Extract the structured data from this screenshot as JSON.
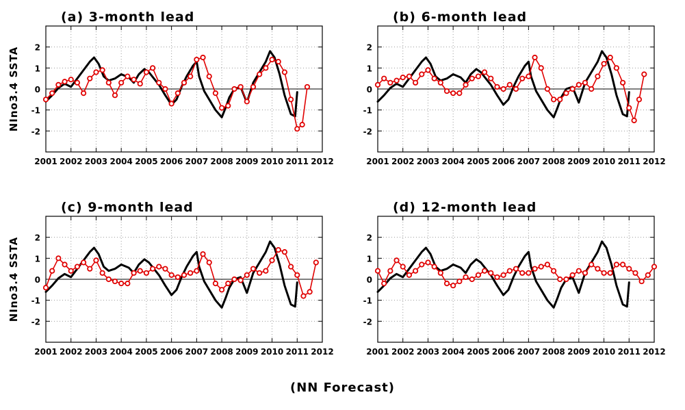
{
  "footer": "(NN Forecast)",
  "chart_data": [
    {
      "type": "line",
      "title": "(a) 3-month lead",
      "ylabel": "NIno3.4 SSTA",
      "xlim": [
        2001,
        2012
      ],
      "ylim": [
        -3,
        3
      ],
      "xticks": [
        "2001",
        "2002",
        "2003",
        "2004",
        "2005",
        "2006",
        "2007",
        "2008",
        "2009",
        "2010",
        "2011",
        "2012"
      ],
      "yticks": [
        "-2",
        "-1",
        "0",
        "1",
        "2"
      ],
      "grid": true,
      "series": [
        {
          "color": "#000000",
          "x": [
            2001.0,
            2001.25,
            2001.5,
            2001.75,
            2002.0,
            2002.25,
            2002.5,
            2002.75,
            2002.92,
            2003.1,
            2003.3,
            2003.5,
            2003.75,
            2004.0,
            2004.3,
            2004.5,
            2004.7,
            2004.92,
            2005.1,
            2005.3,
            2005.5,
            2005.75,
            2006.0,
            2006.2,
            2006.4,
            2006.6,
            2006.85,
            2007.0,
            2007.1,
            2007.3,
            2007.5,
            2007.75,
            2008.0,
            2008.15,
            2008.3,
            2008.5,
            2008.75,
            2009.0,
            2009.25,
            2009.5,
            2009.75,
            2009.92,
            2010.1,
            2010.3,
            2010.5,
            2010.75,
            2010.92,
            2011.0
          ],
          "y": [
            -0.6,
            -0.3,
            0.05,
            0.25,
            0.1,
            0.5,
            0.9,
            1.3,
            1.5,
            1.2,
            0.6,
            0.4,
            0.5,
            0.7,
            0.55,
            0.3,
            0.7,
            0.95,
            0.8,
            0.5,
            0.2,
            -0.3,
            -0.75,
            -0.5,
            0.1,
            0.6,
            1.1,
            1.3,
            0.6,
            -0.1,
            -0.5,
            -1.0,
            -1.35,
            -0.9,
            -0.4,
            0.0,
            0.1,
            -0.65,
            0.3,
            0.8,
            1.3,
            1.8,
            1.5,
            0.7,
            -0.3,
            -1.2,
            -1.3,
            -0.15
          ]
        },
        {
          "color": "#e00000",
          "x": [
            2001.0,
            2001.25,
            2001.5,
            2001.75,
            2002.0,
            2002.25,
            2002.5,
            2002.75,
            2003.0,
            2003.25,
            2003.5,
            2003.75,
            2004.0,
            2004.25,
            2004.5,
            2004.75,
            2005.0,
            2005.25,
            2005.5,
            2005.75,
            2006.0,
            2006.25,
            2006.5,
            2006.75,
            2007.0,
            2007.25,
            2007.5,
            2007.75,
            2008.0,
            2008.25,
            2008.5,
            2008.75,
            2009.0,
            2009.25,
            2009.5,
            2009.75,
            2010.0,
            2010.25,
            2010.5,
            2010.75,
            2011.0,
            2011.2,
            2011.4
          ],
          "y": [
            -0.5,
            -0.2,
            0.2,
            0.35,
            0.45,
            0.3,
            -0.2,
            0.5,
            0.8,
            0.9,
            0.3,
            -0.3,
            0.3,
            0.6,
            0.45,
            0.25,
            0.8,
            1.0,
            0.3,
            0.0,
            -0.7,
            -0.2,
            0.3,
            0.6,
            1.4,
            1.5,
            0.6,
            -0.2,
            -0.9,
            -0.8,
            0.0,
            0.1,
            -0.6,
            0.1,
            0.7,
            1.0,
            1.4,
            1.3,
            0.8,
            -0.5,
            -1.9,
            -1.7,
            0.1
          ]
        }
      ]
    },
    {
      "type": "line",
      "title": "(b) 6-month lead",
      "ylabel": "",
      "xlim": [
        2001,
        2012
      ],
      "ylim": [
        -3,
        3
      ],
      "xticks": [
        "2001",
        "2002",
        "2003",
        "2004",
        "2005",
        "2006",
        "2007",
        "2008",
        "2009",
        "2010",
        "2011",
        "2012"
      ],
      "yticks": [
        "-2",
        "-1",
        "0",
        "1",
        "2"
      ],
      "grid": true,
      "series": [
        {
          "color": "#000000",
          "x": [
            2001.0,
            2001.25,
            2001.5,
            2001.75,
            2002.0,
            2002.25,
            2002.5,
            2002.75,
            2002.92,
            2003.1,
            2003.3,
            2003.5,
            2003.75,
            2004.0,
            2004.3,
            2004.5,
            2004.7,
            2004.92,
            2005.1,
            2005.3,
            2005.5,
            2005.75,
            2006.0,
            2006.2,
            2006.4,
            2006.6,
            2006.85,
            2007.0,
            2007.1,
            2007.3,
            2007.5,
            2007.75,
            2008.0,
            2008.15,
            2008.3,
            2008.5,
            2008.75,
            2009.0,
            2009.25,
            2009.5,
            2009.75,
            2009.92,
            2010.1,
            2010.3,
            2010.5,
            2010.75,
            2010.92,
            2011.0
          ],
          "y": [
            -0.6,
            -0.3,
            0.05,
            0.25,
            0.1,
            0.5,
            0.9,
            1.3,
            1.5,
            1.2,
            0.6,
            0.4,
            0.5,
            0.7,
            0.55,
            0.3,
            0.7,
            0.95,
            0.8,
            0.5,
            0.2,
            -0.3,
            -0.75,
            -0.5,
            0.1,
            0.6,
            1.1,
            1.3,
            0.6,
            -0.1,
            -0.5,
            -1.0,
            -1.35,
            -0.9,
            -0.4,
            0.0,
            0.1,
            -0.65,
            0.3,
            0.8,
            1.3,
            1.8,
            1.5,
            0.7,
            -0.3,
            -1.2,
            -1.3,
            -0.15
          ]
        },
        {
          "color": "#e00000",
          "x": [
            2001.0,
            2001.25,
            2001.5,
            2001.75,
            2002.0,
            2002.25,
            2002.5,
            2002.75,
            2003.0,
            2003.25,
            2003.5,
            2003.75,
            2004.0,
            2004.25,
            2004.5,
            2004.75,
            2005.0,
            2005.25,
            2005.5,
            2005.75,
            2006.0,
            2006.25,
            2006.5,
            2006.75,
            2007.0,
            2007.25,
            2007.5,
            2007.75,
            2008.0,
            2008.25,
            2008.5,
            2008.75,
            2009.0,
            2009.25,
            2009.5,
            2009.75,
            2010.0,
            2010.25,
            2010.5,
            2010.75,
            2011.0,
            2011.2,
            2011.4,
            2011.6
          ],
          "y": [
            0.2,
            0.5,
            0.3,
            0.4,
            0.55,
            0.6,
            0.3,
            0.7,
            0.9,
            0.5,
            0.3,
            -0.1,
            -0.2,
            -0.2,
            0.2,
            0.5,
            0.6,
            0.8,
            0.5,
            0.1,
            0.0,
            0.2,
            0.0,
            0.5,
            0.6,
            1.5,
            1.0,
            0.0,
            -0.5,
            -0.5,
            -0.2,
            0.0,
            0.2,
            0.3,
            0.0,
            0.6,
            1.2,
            1.5,
            1.0,
            0.3,
            -0.9,
            -1.5,
            -0.5,
            0.7
          ]
        }
      ]
    },
    {
      "type": "line",
      "title": "(c) 9-month lead",
      "ylabel": "NIno3.4 SSTA",
      "xlim": [
        2001,
        2012
      ],
      "ylim": [
        -3,
        3
      ],
      "xticks": [
        "2001",
        "2002",
        "2003",
        "2004",
        "2005",
        "2006",
        "2007",
        "2008",
        "2009",
        "2010",
        "2011",
        "2012"
      ],
      "yticks": [
        "-2",
        "-1",
        "0",
        "1",
        "2"
      ],
      "grid": true,
      "series": [
        {
          "color": "#000000",
          "x": [
            2001.0,
            2001.25,
            2001.5,
            2001.75,
            2002.0,
            2002.25,
            2002.5,
            2002.75,
            2002.92,
            2003.1,
            2003.3,
            2003.5,
            2003.75,
            2004.0,
            2004.3,
            2004.5,
            2004.7,
            2004.92,
            2005.1,
            2005.3,
            2005.5,
            2005.75,
            2006.0,
            2006.2,
            2006.4,
            2006.6,
            2006.85,
            2007.0,
            2007.1,
            2007.3,
            2007.5,
            2007.75,
            2008.0,
            2008.15,
            2008.3,
            2008.5,
            2008.75,
            2009.0,
            2009.25,
            2009.5,
            2009.75,
            2009.92,
            2010.1,
            2010.3,
            2010.5,
            2010.75,
            2010.92,
            2011.0
          ],
          "y": [
            -0.6,
            -0.3,
            0.05,
            0.25,
            0.1,
            0.5,
            0.9,
            1.3,
            1.5,
            1.2,
            0.6,
            0.4,
            0.5,
            0.7,
            0.55,
            0.3,
            0.7,
            0.95,
            0.8,
            0.5,
            0.2,
            -0.3,
            -0.75,
            -0.5,
            0.1,
            0.6,
            1.1,
            1.3,
            0.6,
            -0.1,
            -0.5,
            -1.0,
            -1.35,
            -0.9,
            -0.4,
            0.0,
            0.1,
            -0.65,
            0.3,
            0.8,
            1.3,
            1.8,
            1.5,
            0.7,
            -0.3,
            -1.2,
            -1.3,
            -0.15
          ]
        },
        {
          "color": "#e00000",
          "x": [
            2001.0,
            2001.25,
            2001.5,
            2001.75,
            2002.0,
            2002.25,
            2002.5,
            2002.75,
            2003.0,
            2003.25,
            2003.5,
            2003.75,
            2004.0,
            2004.25,
            2004.5,
            2004.75,
            2005.0,
            2005.25,
            2005.5,
            2005.75,
            2006.0,
            2006.25,
            2006.5,
            2006.75,
            2007.0,
            2007.25,
            2007.5,
            2007.75,
            2008.0,
            2008.25,
            2008.5,
            2008.75,
            2009.0,
            2009.25,
            2009.5,
            2009.75,
            2010.0,
            2010.25,
            2010.5,
            2010.75,
            2011.0,
            2011.25,
            2011.5,
            2011.75
          ],
          "y": [
            -0.4,
            0.4,
            1.0,
            0.7,
            0.4,
            0.6,
            0.8,
            0.5,
            0.9,
            0.3,
            0.0,
            -0.1,
            -0.2,
            -0.2,
            0.3,
            0.4,
            0.3,
            0.5,
            0.6,
            0.5,
            0.2,
            0.1,
            0.2,
            0.3,
            0.4,
            1.2,
            0.8,
            -0.2,
            -0.5,
            -0.2,
            0.0,
            -0.05,
            0.2,
            0.5,
            0.3,
            0.4,
            0.9,
            1.4,
            1.3,
            0.6,
            0.2,
            -0.8,
            -0.6,
            0.8
          ]
        }
      ]
    },
    {
      "type": "line",
      "title": "(d) 12-month lead",
      "ylabel": "",
      "xlim": [
        2001,
        2012
      ],
      "ylim": [
        -3,
        3
      ],
      "xticks": [
        "2001",
        "2002",
        "2003",
        "2004",
        "2005",
        "2006",
        "2007",
        "2008",
        "2009",
        "2010",
        "2011",
        "2012"
      ],
      "yticks": [
        "-2",
        "-1",
        "0",
        "1",
        "2"
      ],
      "grid": true,
      "series": [
        {
          "color": "#000000",
          "x": [
            2001.0,
            2001.25,
            2001.5,
            2001.75,
            2002.0,
            2002.25,
            2002.5,
            2002.75,
            2002.92,
            2003.1,
            2003.3,
            2003.5,
            2003.75,
            2004.0,
            2004.3,
            2004.5,
            2004.7,
            2004.92,
            2005.1,
            2005.3,
            2005.5,
            2005.75,
            2006.0,
            2006.2,
            2006.4,
            2006.6,
            2006.85,
            2007.0,
            2007.1,
            2007.3,
            2007.5,
            2007.75,
            2008.0,
            2008.15,
            2008.3,
            2008.5,
            2008.75,
            2009.0,
            2009.25,
            2009.5,
            2009.75,
            2009.92,
            2010.1,
            2010.3,
            2010.5,
            2010.75,
            2010.92,
            2011.0
          ],
          "y": [
            -0.6,
            -0.3,
            0.05,
            0.25,
            0.1,
            0.5,
            0.9,
            1.3,
            1.5,
            1.2,
            0.6,
            0.4,
            0.5,
            0.7,
            0.55,
            0.3,
            0.7,
            0.95,
            0.8,
            0.5,
            0.2,
            -0.3,
            -0.75,
            -0.5,
            0.1,
            0.6,
            1.1,
            1.3,
            0.6,
            -0.1,
            -0.5,
            -1.0,
            -1.35,
            -0.9,
            -0.4,
            0.0,
            0.1,
            -0.65,
            0.3,
            0.8,
            1.3,
            1.8,
            1.5,
            0.7,
            -0.3,
            -1.2,
            -1.3,
            -0.15
          ]
        },
        {
          "color": "#e00000",
          "x": [
            2001.0,
            2001.25,
            2001.5,
            2001.75,
            2002.0,
            2002.25,
            2002.5,
            2002.75,
            2003.0,
            2003.25,
            2003.5,
            2003.75,
            2004.0,
            2004.25,
            2004.5,
            2004.75,
            2005.0,
            2005.25,
            2005.5,
            2005.75,
            2006.0,
            2006.25,
            2006.5,
            2006.75,
            2007.0,
            2007.25,
            2007.5,
            2007.75,
            2008.0,
            2008.25,
            2008.5,
            2008.75,
            2009.0,
            2009.25,
            2009.5,
            2009.75,
            2010.0,
            2010.25,
            2010.5,
            2010.75,
            2011.0,
            2011.25,
            2011.5,
            2011.75,
            2012.0
          ],
          "y": [
            0.4,
            -0.2,
            0.4,
            0.9,
            0.6,
            0.2,
            0.4,
            0.7,
            0.8,
            0.6,
            0.3,
            -0.2,
            -0.3,
            -0.1,
            0.1,
            0.0,
            0.2,
            0.4,
            0.3,
            0.1,
            0.2,
            0.4,
            0.5,
            0.3,
            0.3,
            0.5,
            0.6,
            0.7,
            0.4,
            0.0,
            0.0,
            0.2,
            0.4,
            0.3,
            0.7,
            0.5,
            0.3,
            0.3,
            0.7,
            0.7,
            0.5,
            0.3,
            -0.1,
            0.2,
            0.6
          ]
        }
      ]
    }
  ]
}
